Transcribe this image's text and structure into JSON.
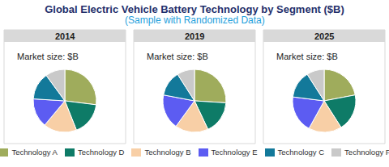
{
  "header": {
    "title": "Global Electric Vehicle Battery Technology by Segment ($B)",
    "subtitle": "(Sample with Randomized Data)"
  },
  "chart_data": [
    {
      "type": "pie",
      "title": "2014",
      "annotation": "Market size: $B",
      "legend": "bottom",
      "categories": [
        "Technology A",
        "Technology D",
        "Technology B",
        "Technology E",
        "Technology C",
        "Technology F"
      ],
      "values": [
        27,
        17,
        17,
        15,
        14,
        10
      ],
      "colors": [
        "#9fac5c",
        "#0e7b67",
        "#f8cfa6",
        "#5c5cf2",
        "#13799a",
        "#c9c9c9"
      ]
    },
    {
      "type": "pie",
      "title": "2019",
      "annotation": "Market size: $B",
      "categories": [
        "Technology A",
        "Technology D",
        "Technology B",
        "Technology E",
        "Technology C",
        "Technology F"
      ],
      "values": [
        26,
        17,
        17,
        18,
        13,
        9
      ],
      "colors": [
        "#9fac5c",
        "#0e7b67",
        "#f8cfa6",
        "#5c5cf2",
        "#13799a",
        "#c9c9c9"
      ]
    },
    {
      "type": "pie",
      "title": "2025",
      "annotation": "Market size: $B",
      "categories": [
        "Technology A",
        "Technology D",
        "Technology B",
        "Technology E",
        "Technology C",
        "Technology F"
      ],
      "values": [
        22,
        19,
        17,
        19,
        14,
        9
      ],
      "colors": [
        "#9fac5c",
        "#0e7b67",
        "#f8cfa6",
        "#5c5cf2",
        "#13799a",
        "#c9c9c9"
      ]
    }
  ]
}
